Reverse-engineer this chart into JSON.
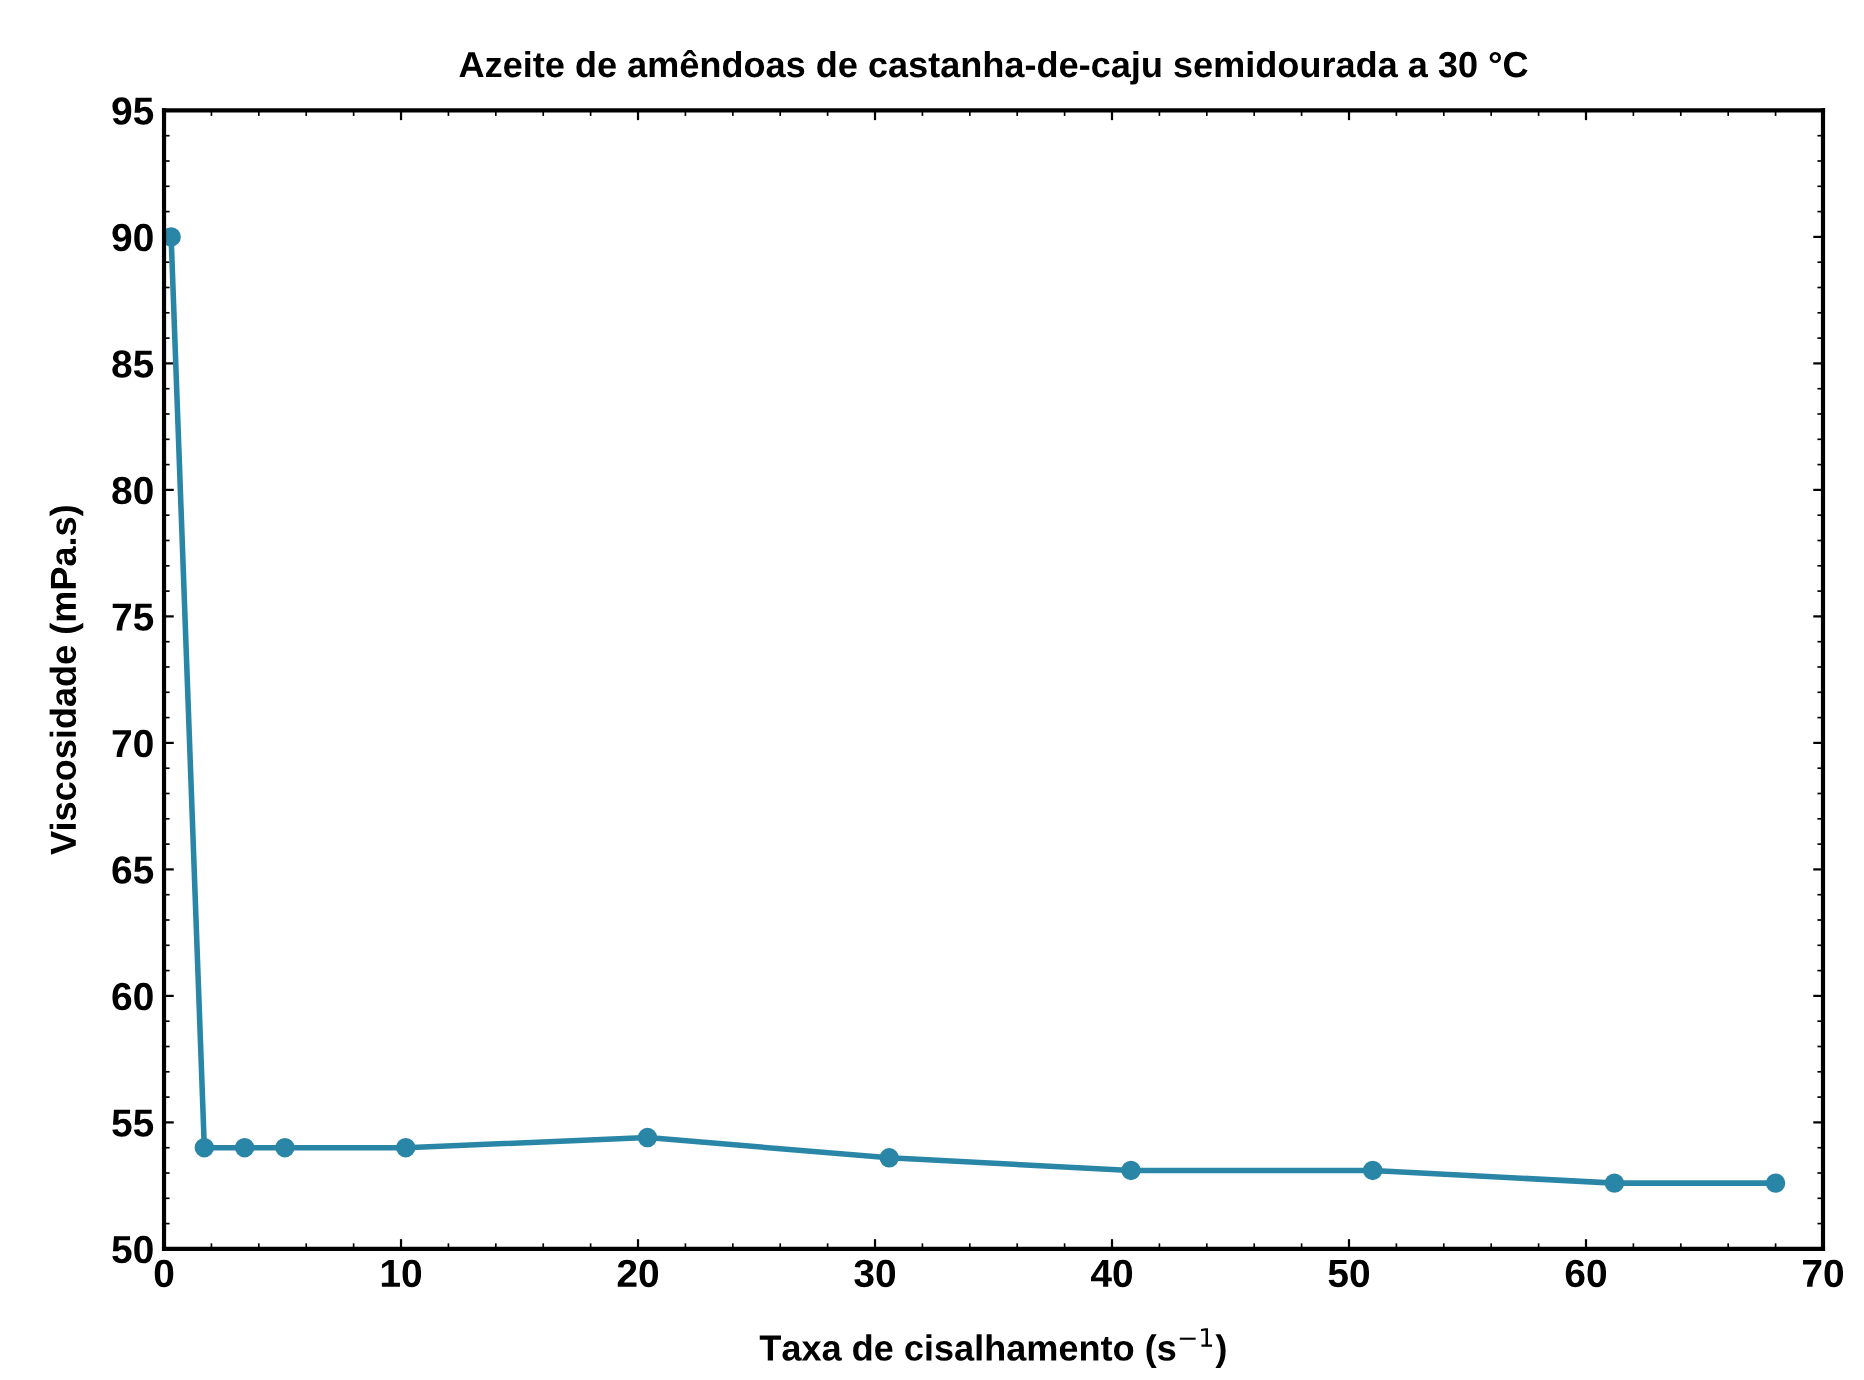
{
  "chart_data": {
    "type": "line",
    "title": "Azeite de amêndoas de castanha-de-caju semidourada a 30 °C",
    "xlabel": "Taxa de cisalhamento (s$^{−1}$)",
    "ylabel": "Viscosidade (mPa.s)",
    "x": [
      0.3,
      1.7,
      3.4,
      5.1,
      10.2,
      20.4,
      30.6,
      40.8,
      51,
      61.2,
      68
    ],
    "series": [
      {
        "color": "#2a86a6",
        "values": [
          90,
          54,
          54,
          54,
          54,
          54.4,
          53.6,
          53.1,
          53.1,
          52.6,
          52.6
        ]
      }
    ],
    "xlim": [
      0,
      70
    ],
    "xticks": [
      0,
      10,
      20,
      30,
      40,
      50,
      60,
      70
    ],
    "ylim": [
      50,
      95
    ],
    "yticks": [
      50,
      55,
      60,
      65,
      70,
      75,
      80,
      85,
      90,
      95
    ],
    "marker": "circle",
    "line_style": "solid",
    "grid": false,
    "legend": false
  }
}
